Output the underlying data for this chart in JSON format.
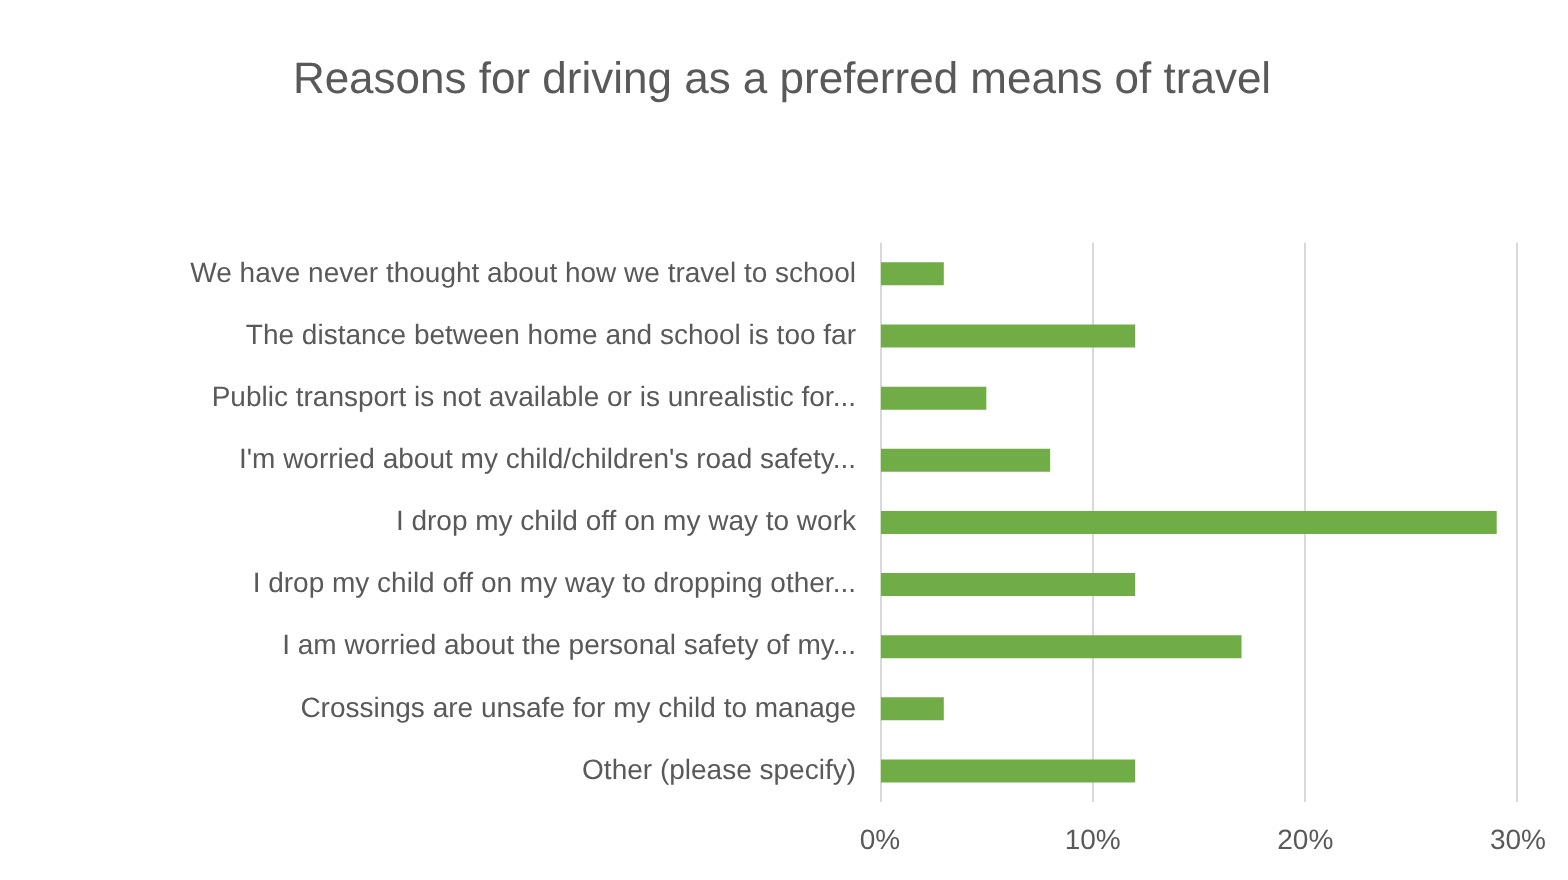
{
  "chart_data": {
    "type": "bar",
    "orientation": "horizontal",
    "title": "Reasons for driving as a preferred means of travel",
    "categories": [
      "We have never thought about how we travel to school",
      "The distance between home and school is too far",
      "Public transport is not available or is unrealistic for...",
      "I'm worried about my child/children's road safety...",
      "I drop my child off on my way to work",
      "I drop my child off on my way to dropping other...",
      "I am worried about the personal safety of my...",
      "Crossings are unsafe for my child to manage",
      "Other (please specify)"
    ],
    "values": [
      3,
      12,
      5,
      8,
      29,
      12,
      17,
      3,
      12
    ],
    "color": "#70ad47",
    "xlim": [
      0,
      30
    ],
    "xticks": [
      {
        "value": 0,
        "label": "0%"
      },
      {
        "value": 10,
        "label": "10%"
      },
      {
        "value": 20,
        "label": "20%"
      },
      {
        "value": 30,
        "label": "30%"
      }
    ],
    "grid": "x"
  }
}
